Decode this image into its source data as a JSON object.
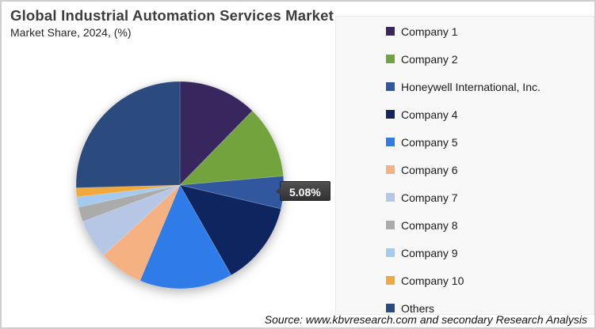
{
  "header": {
    "title": "Global Industrial Automation Services Market",
    "subtitle": "Market Share, 2024, (%)"
  },
  "chart_data": {
    "type": "pie",
    "title": "Global Industrial Automation Services Market",
    "subtitle": "Market Share, 2024, (%)",
    "start_angle_deg": 0,
    "direction": "clockwise",
    "legend_position": "right",
    "series": [
      {
        "label": "Company 1",
        "value": 12.3,
        "color": "#38265E"
      },
      {
        "label": "Company 2",
        "value": 11.3,
        "color": "#73A33C"
      },
      {
        "label": "Honeywell International, Inc.",
        "value": 5.08,
        "color": "#31589F"
      },
      {
        "label": "Company 4",
        "value": 13.1,
        "color": "#0F2560"
      },
      {
        "label": "Company 5",
        "value": 14.5,
        "color": "#2F7BE8"
      },
      {
        "label": "Company 6",
        "value": 6.9,
        "color": "#F6B183"
      },
      {
        "label": "Company 7",
        "value": 6.1,
        "color": "#B6C7E6"
      },
      {
        "label": "Company 8",
        "value": 2.3,
        "color": "#ABABAB"
      },
      {
        "label": "Company 9",
        "value": 1.6,
        "color": "#A4CBEF"
      },
      {
        "label": "Company 10",
        "value": 1.4,
        "color": "#F2A93B"
      },
      {
        "label": "Others",
        "value": 25.42,
        "color": "#2B4B7E"
      }
    ],
    "annotation": {
      "text": "5.08%",
      "target": "Honeywell International, Inc."
    }
  },
  "footer": {
    "source": "Source: www.kbvresearch.com and secondary Research Analysis"
  }
}
